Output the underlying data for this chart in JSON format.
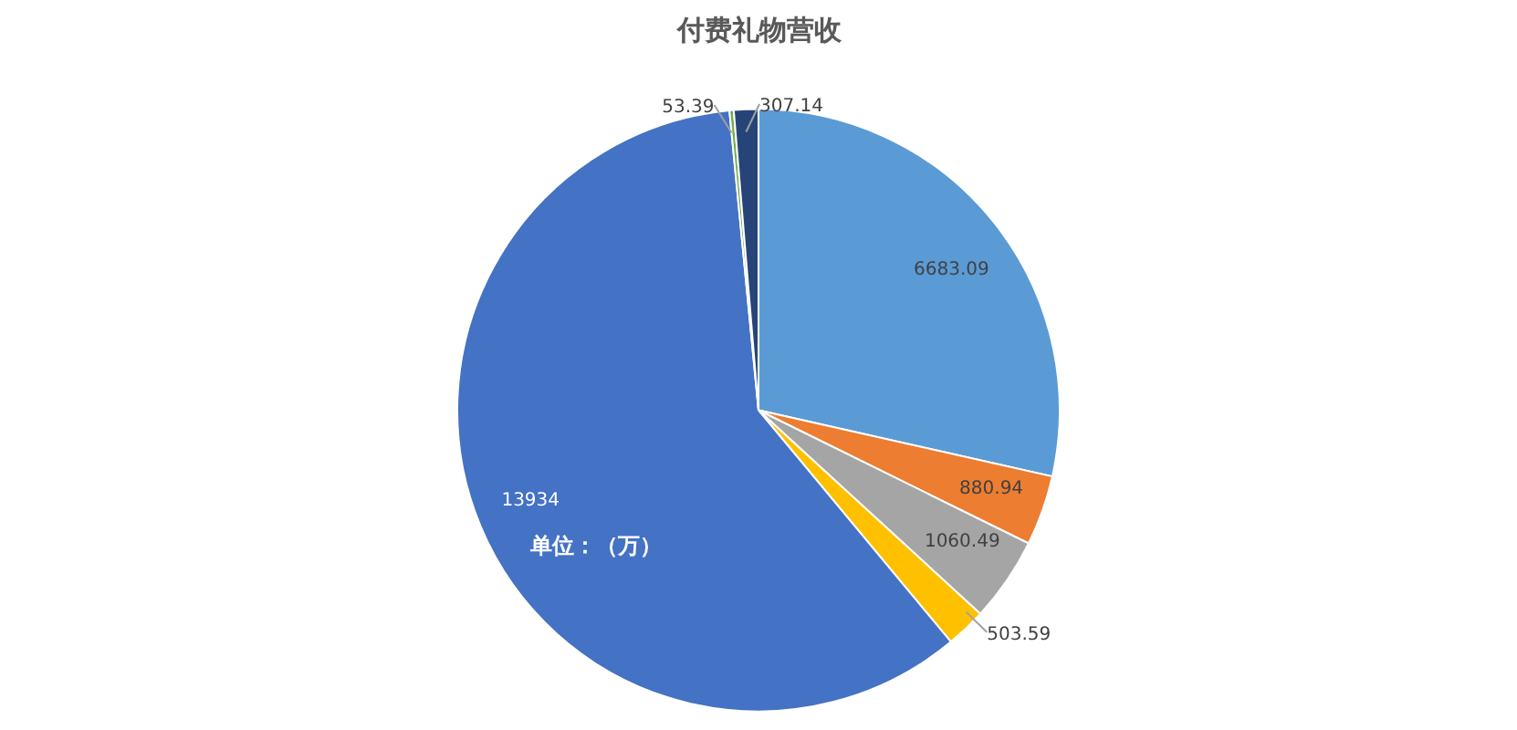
{
  "chart_data": {
    "type": "pie",
    "title": "付费礼物营收",
    "categories": [
      null,
      null,
      null,
      null,
      null,
      null,
      null
    ],
    "values": [
      6683.09,
      880.94,
      1060.49,
      503.59,
      13934,
      53.39,
      307.14
    ],
    "colors": [
      "#5b9bd5",
      "#ed7d31",
      "#a5a5a5",
      "#ffc000",
      "#4472c4",
      "#70ad47",
      "#264478"
    ],
    "data_labels": true,
    "annotations": [
      "单位：（万）"
    ]
  }
}
